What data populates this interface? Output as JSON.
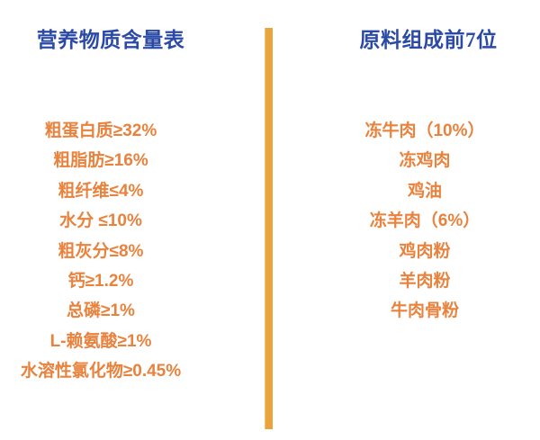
{
  "nutrition_panel": {
    "title": "营养物质含量表",
    "items": [
      "粗蛋白质≥32%",
      "粗脂肪≥16%",
      "粗纤维≤4%",
      "水分 ≤10%",
      "粗灰分≤8%",
      "钙≥1.2%",
      "总磷≥1%",
      "L-赖氨酸≥1%",
      "水溶性氯化物≥0.45%"
    ]
  },
  "ingredients_panel": {
    "title": "原料组成前7位",
    "items": [
      "冻牛肉（10%）",
      "冻鸡肉",
      "鸡油",
      "冻羊肉（6%）",
      "鸡肉粉",
      "羊肉粉",
      "牛肉骨粉"
    ]
  },
  "colors": {
    "title_blue": "#2b4aa6",
    "item_orange": "#e8823c",
    "divider_orange": "#eaa43c",
    "background": "#ffffff"
  }
}
